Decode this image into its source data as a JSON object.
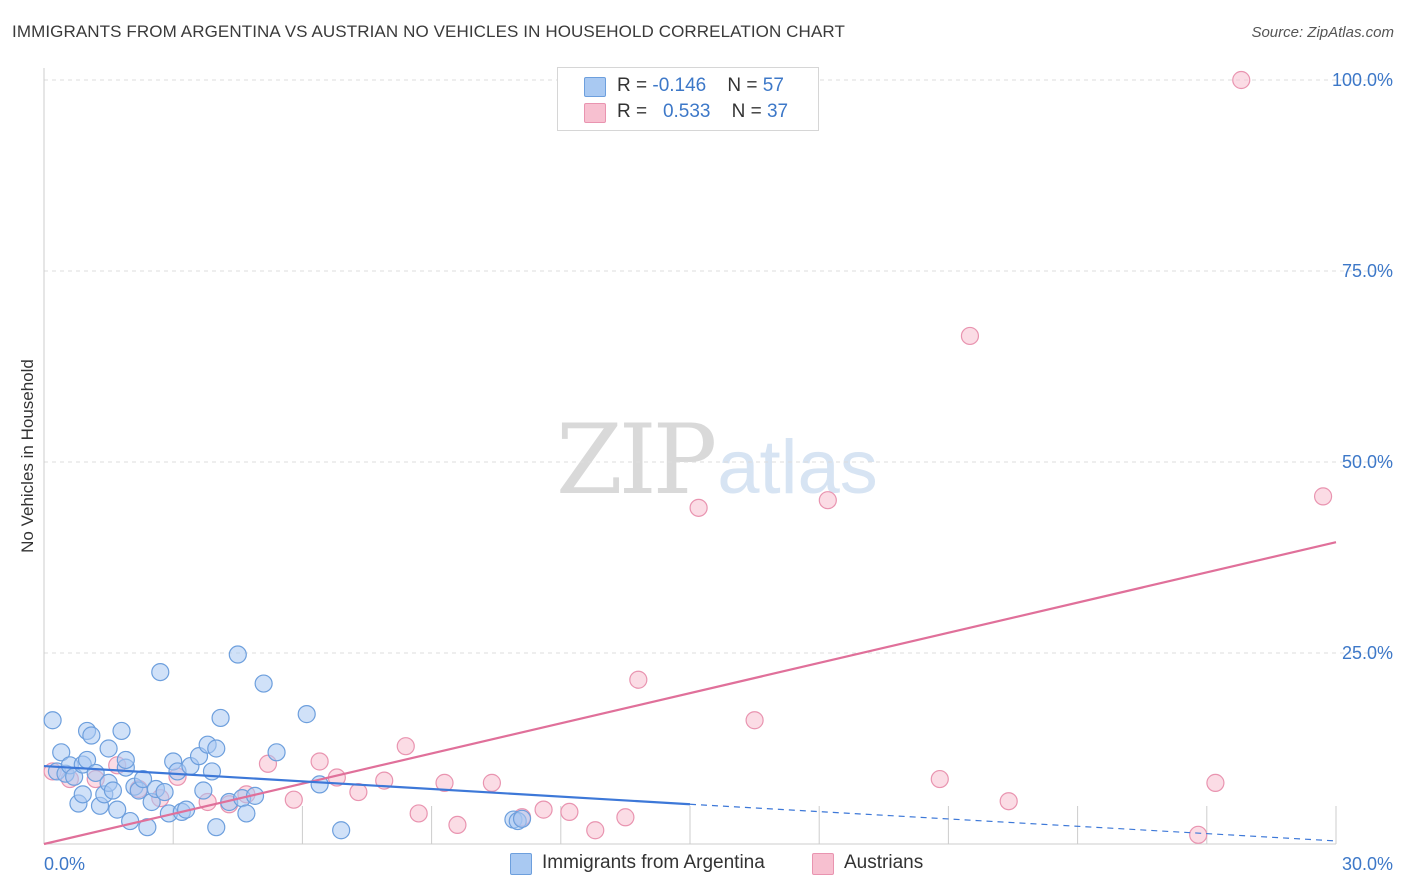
{
  "header": {
    "title": "IMMIGRANTS FROM ARGENTINA VS AUSTRIAN NO VEHICLES IN HOUSEHOLD CORRELATION CHART",
    "source": "Source: ZipAtlas.com"
  },
  "watermark": {
    "zip": "ZIP",
    "atlas": "atlas"
  },
  "legend": {
    "series1": {
      "r_label": "R = ",
      "r_value": "-0.146",
      "n_label": "N = ",
      "n_value": "57"
    },
    "series2": {
      "r_label": "R = ",
      "r_value": "0.533",
      "n_label": "N = ",
      "n_value": "37"
    }
  },
  "bottom_legend": {
    "series1": "Immigrants from Argentina",
    "series2": "Austrians"
  },
  "colors": {
    "blue_fill": "#a9c9f2",
    "blue_stroke": "#6d9fdd",
    "blue_line": "#3d78d8",
    "pink_fill": "#f7c0d0",
    "pink_stroke": "#e994b0",
    "pink_line": "#e0709a",
    "tick_text": "#3d78c8",
    "grid": "#dddddd"
  },
  "chart_data": {
    "type": "scatter",
    "title": "IMMIGRANTS FROM ARGENTINA VS AUSTRIAN NO VEHICLES IN HOUSEHOLD CORRELATION CHART",
    "xlabel": "",
    "ylabel": "No Vehicles in Household",
    "xlim": [
      0,
      30
    ],
    "ylim": [
      0,
      100
    ],
    "x_tick_labels": [
      "0.0%",
      "30.0%"
    ],
    "y_ticks": [
      25,
      50,
      75,
      100
    ],
    "y_tick_labels": [
      "25.0%",
      "50.0%",
      "75.0%",
      "100.0%"
    ],
    "grid": true,
    "series": [
      {
        "name": "Immigrants from Argentina",
        "r": -0.146,
        "n": 57,
        "points": [
          [
            0.2,
            16.2
          ],
          [
            0.3,
            9.5
          ],
          [
            0.4,
            12.0
          ],
          [
            0.5,
            9.2
          ],
          [
            0.6,
            10.3
          ],
          [
            0.7,
            8.8
          ],
          [
            0.8,
            5.3
          ],
          [
            0.9,
            10.4
          ],
          [
            0.9,
            6.5
          ],
          [
            1.0,
            11.0
          ],
          [
            1.0,
            14.8
          ],
          [
            1.1,
            14.2
          ],
          [
            1.2,
            9.3
          ],
          [
            1.3,
            5.0
          ],
          [
            1.4,
            6.5
          ],
          [
            1.5,
            8.0
          ],
          [
            1.5,
            12.5
          ],
          [
            1.6,
            7.0
          ],
          [
            1.7,
            4.5
          ],
          [
            1.8,
            14.8
          ],
          [
            1.9,
            10.0
          ],
          [
            1.9,
            11.0
          ],
          [
            2.0,
            3.0
          ],
          [
            2.1,
            7.5
          ],
          [
            2.2,
            7.0
          ],
          [
            2.3,
            8.5
          ],
          [
            2.4,
            2.2
          ],
          [
            2.5,
            5.5
          ],
          [
            2.6,
            7.2
          ],
          [
            2.7,
            22.5
          ],
          [
            2.8,
            6.8
          ],
          [
            2.9,
            4.0
          ],
          [
            3.0,
            10.8
          ],
          [
            3.1,
            9.5
          ],
          [
            3.2,
            4.2
          ],
          [
            3.3,
            4.5
          ],
          [
            3.4,
            10.2
          ],
          [
            3.6,
            11.5
          ],
          [
            3.7,
            7.0
          ],
          [
            3.8,
            13.0
          ],
          [
            3.9,
            9.5
          ],
          [
            4.0,
            12.5
          ],
          [
            4.0,
            2.2
          ],
          [
            4.1,
            16.5
          ],
          [
            4.3,
            5.5
          ],
          [
            4.5,
            24.8
          ],
          [
            4.6,
            6.0
          ],
          [
            4.7,
            4.0
          ],
          [
            4.9,
            6.3
          ],
          [
            5.1,
            21.0
          ],
          [
            5.4,
            12.0
          ],
          [
            6.1,
            17.0
          ],
          [
            6.4,
            7.8
          ],
          [
            6.9,
            1.8
          ],
          [
            10.9,
            3.2
          ],
          [
            11.0,
            3.0
          ],
          [
            11.1,
            3.3
          ]
        ],
        "trend": {
          "x": [
            0,
            15
          ],
          "y": [
            10.2,
            5.2
          ]
        },
        "trend_extension": {
          "x": [
            15,
            30
          ],
          "y": [
            5.2,
            0.4
          ]
        }
      },
      {
        "name": "Austrians",
        "r": 0.533,
        "n": 37,
        "points": [
          [
            0.2,
            9.5
          ],
          [
            0.6,
            8.5
          ],
          [
            1.2,
            8.5
          ],
          [
            1.7,
            10.3
          ],
          [
            2.2,
            7.2
          ],
          [
            2.7,
            6.0
          ],
          [
            3.1,
            8.8
          ],
          [
            3.8,
            5.5
          ],
          [
            4.3,
            5.2
          ],
          [
            4.7,
            6.5
          ],
          [
            5.2,
            10.5
          ],
          [
            5.8,
            5.8
          ],
          [
            6.4,
            10.8
          ],
          [
            6.8,
            8.7
          ],
          [
            7.3,
            6.8
          ],
          [
            7.9,
            8.3
          ],
          [
            8.4,
            12.8
          ],
          [
            8.7,
            4.0
          ],
          [
            9.3,
            8.0
          ],
          [
            9.6,
            2.5
          ],
          [
            10.4,
            8.0
          ],
          [
            11.1,
            3.5
          ],
          [
            11.6,
            4.5
          ],
          [
            12.2,
            4.2
          ],
          [
            12.8,
            1.8
          ],
          [
            13.5,
            3.5
          ],
          [
            13.8,
            21.5
          ],
          [
            15.2,
            44.0
          ],
          [
            16.5,
            16.2
          ],
          [
            18.2,
            45.0
          ],
          [
            20.8,
            8.5
          ],
          [
            21.5,
            66.5
          ],
          [
            22.4,
            5.6
          ],
          [
            26.8,
            1.2
          ],
          [
            27.2,
            8.0
          ],
          [
            27.8,
            100.0
          ],
          [
            29.7,
            45.5
          ]
        ],
        "trend": {
          "x": [
            0,
            30
          ],
          "y": [
            0,
            39.5
          ]
        }
      }
    ]
  }
}
